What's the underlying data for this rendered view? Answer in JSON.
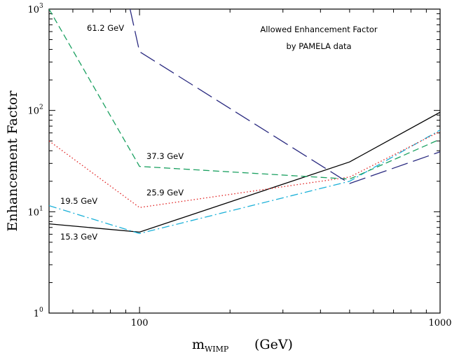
{
  "chart_data": {
    "type": "line",
    "title": "",
    "annotations": [
      "Allowed Enhancement Factor",
      "by PAMELA data"
    ],
    "xlabel": {
      "main": "m",
      "subscript": "WIMP",
      "unit": "(GeV)"
    },
    "ylabel": "Enhancement Factor",
    "xscale": "log",
    "yscale": "log",
    "xlim": [
      50,
      1000
    ],
    "ylim": [
      1,
      1000
    ],
    "grid": false,
    "x_ticks": [
      {
        "value": 100,
        "label": "100"
      },
      {
        "value": 1000,
        "label": "1000"
      }
    ],
    "y_ticks": [
      {
        "value": 1,
        "label": "1",
        "exponent": "0"
      },
      {
        "value": 10,
        "label": "10",
        "exponent": "1"
      },
      {
        "value": 100,
        "label": "10",
        "exponent": "2"
      },
      {
        "value": 1000,
        "label": "10",
        "exponent": "3"
      }
    ],
    "series": [
      {
        "name": "15.3 GeV",
        "color": "#000000",
        "dash": "solid",
        "x": [
          50,
          100,
          500,
          1000
        ],
        "y": [
          7.6,
          6.3,
          31,
          96
        ]
      },
      {
        "name": "19.5 GeV",
        "color": "#1ab0d8",
        "dash": "dashdot",
        "x": [
          50,
          100,
          500,
          1000
        ],
        "y": [
          11.5,
          6.1,
          20,
          64
        ]
      },
      {
        "name": "25.9 GeV",
        "color": "#e02020",
        "dash": "dotted",
        "x": [
          50,
          100,
          500,
          1000
        ],
        "y": [
          50,
          11,
          22,
          62
        ]
      },
      {
        "name": "37.3 GeV",
        "color": "#1aa060",
        "dash": "dashed",
        "x": [
          50,
          100,
          500,
          1000
        ],
        "y": [
          1000,
          28,
          21,
          52
        ]
      },
      {
        "name": "61.2 GeV",
        "color": "#2a2a80",
        "dash": "longdash",
        "x": [
          93,
          100,
          500,
          1000
        ],
        "y": [
          1000,
          380,
          19,
          39
        ]
      }
    ]
  }
}
